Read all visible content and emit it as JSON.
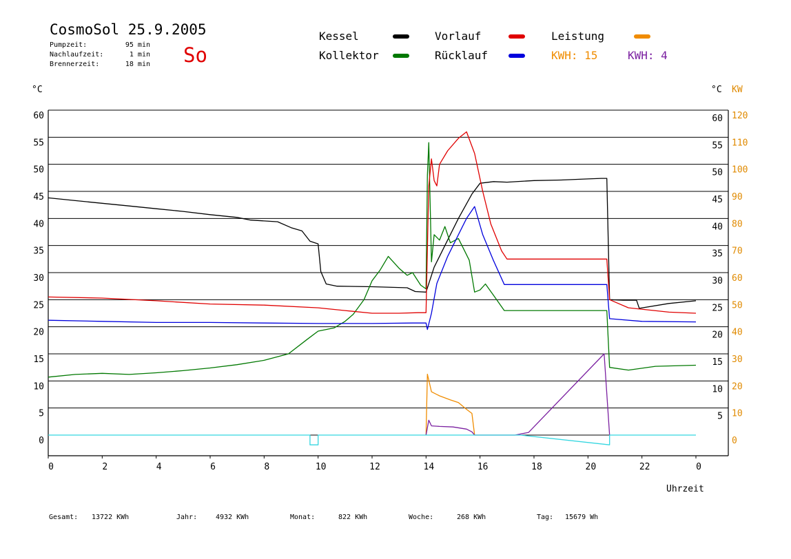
{
  "header": {
    "title": "CosmoSol 25.9.2005",
    "day": "So",
    "info": [
      {
        "label": "Pumpzeit:",
        "value": "95 min"
      },
      {
        "label": "Nachlaufzeit:",
        "value": "1 min"
      },
      {
        "label": "Brennerzeit:",
        "value": "18 min"
      }
    ]
  },
  "legend": {
    "items": [
      {
        "label": "Kessel",
        "color": "#000000"
      },
      {
        "label": "Kollektor",
        "color": "#008000"
      },
      {
        "label": "Vorlauf",
        "color": "#e00000"
      },
      {
        "label": "Rücklauf",
        "color": "#0000e0"
      },
      {
        "label": "Leistung",
        "color": "#f08c00"
      }
    ],
    "kwh_orange": "KWH: 15",
    "kwh_purple": "KWH: 4"
  },
  "axes": {
    "left_unit": "°C",
    "right_unit": "°C",
    "kw_unit": "KW",
    "x_label": "Uhrzeit"
  },
  "footer": {
    "items": [
      {
        "label": "Gesamt:",
        "value": "13722 KWh"
      },
      {
        "label": "Jahr:",
        "value": "4932 KWh"
      },
      {
        "label": "Monat:",
        "value": "822 KWh"
      },
      {
        "label": "Woche:",
        "value": "268 KWh"
      },
      {
        "label": "Tag:",
        "value": "15679 Wh"
      }
    ]
  },
  "colors": {
    "kessel": "#000000",
    "kollektor": "#007800",
    "vorlauf": "#e00000",
    "ruecklauf": "#0000dd",
    "leistung": "#f08c00",
    "kwh4": "#7a1fa0",
    "pump": "#33d6e0",
    "kw_axis": "#e08a00"
  },
  "chart_data": {
    "type": "line",
    "x_ticks": [
      "0",
      "2",
      "4",
      "6",
      "8",
      "10",
      "12",
      "14",
      "16",
      "18",
      "20",
      "22",
      "0"
    ],
    "y_left_ticks": [
      "60",
      "55",
      "50",
      "45",
      "40",
      "35",
      "30",
      "25",
      "20",
      "15",
      "10",
      "5",
      "0"
    ],
    "y_right_ticks": [
      "60",
      "55",
      "50",
      "45",
      "40",
      "35",
      "30",
      "25",
      "20",
      "15",
      "10",
      "5"
    ],
    "y_kw_ticks": [
      "120",
      "110",
      "100",
      "90",
      "80",
      "70",
      "60",
      "50",
      "40",
      "30",
      "20",
      "10",
      "0"
    ],
    "xlim": [
      0,
      24
    ],
    "ylim": [
      0,
      60
    ],
    "kw_lim": [
      0,
      120
    ],
    "series": [
      {
        "name": "Kessel",
        "color": "#000000",
        "points": [
          [
            0,
            43.8
          ],
          [
            1,
            43.3
          ],
          [
            2,
            42.8
          ],
          [
            3,
            42.3
          ],
          [
            4,
            41.8
          ],
          [
            5,
            41.3
          ],
          [
            6,
            40.7
          ],
          [
            7,
            40.2
          ],
          [
            7.5,
            39.7
          ],
          [
            8.5,
            39.4
          ],
          [
            9,
            38.3
          ],
          [
            9.4,
            37.7
          ],
          [
            9.7,
            35.8
          ],
          [
            10,
            35.3
          ],
          [
            10.1,
            30.2
          ],
          [
            10.3,
            27.9
          ],
          [
            10.7,
            27.5
          ],
          [
            12,
            27.4
          ],
          [
            13.3,
            27.2
          ],
          [
            13.6,
            26.5
          ],
          [
            14,
            26.4
          ],
          [
            14.3,
            31
          ],
          [
            14.7,
            35
          ],
          [
            15.2,
            40
          ],
          [
            15.7,
            44.5
          ],
          [
            16,
            46.5
          ],
          [
            16.5,
            46.8
          ],
          [
            17,
            46.7
          ],
          [
            18,
            47
          ],
          [
            19,
            47.1
          ],
          [
            20,
            47.3
          ],
          [
            20.5,
            47.4
          ],
          [
            20.7,
            47.4
          ],
          [
            20.8,
            25
          ],
          [
            21.3,
            24.9
          ],
          [
            21.8,
            24.9
          ],
          [
            21.9,
            23.4
          ],
          [
            23,
            24.3
          ],
          [
            24,
            24.8
          ]
        ]
      },
      {
        "name": "Kollektor",
        "color": "#007800",
        "points": [
          [
            0,
            10.7
          ],
          [
            1,
            11.2
          ],
          [
            2,
            11.4
          ],
          [
            3,
            11.2
          ],
          [
            4,
            11.5
          ],
          [
            5,
            11.9
          ],
          [
            6,
            12.4
          ],
          [
            7,
            13
          ],
          [
            8,
            13.8
          ],
          [
            8.9,
            15
          ],
          [
            9.6,
            17.7
          ],
          [
            10,
            19.2
          ],
          [
            10.6,
            19.8
          ],
          [
            11,
            21
          ],
          [
            11.3,
            22.3
          ],
          [
            11.7,
            25
          ],
          [
            12,
            28.5
          ],
          [
            12.3,
            30.5
          ],
          [
            12.6,
            33
          ],
          [
            13,
            30.8
          ],
          [
            13.3,
            29.5
          ],
          [
            13.5,
            30
          ],
          [
            13.8,
            27.7
          ],
          [
            14,
            27
          ],
          [
            14.05,
            48
          ],
          [
            14.1,
            54
          ],
          [
            14.2,
            32
          ],
          [
            14.3,
            37
          ],
          [
            14.5,
            36
          ],
          [
            14.7,
            38.5
          ],
          [
            14.9,
            35.5
          ],
          [
            15.2,
            36.3
          ],
          [
            15.4,
            34.3
          ],
          [
            15.6,
            32.3
          ],
          [
            15.8,
            26.4
          ],
          [
            16,
            26.8
          ],
          [
            16.2,
            27.9
          ],
          [
            16.5,
            25.8
          ],
          [
            16.9,
            23
          ],
          [
            17.5,
            23
          ],
          [
            19,
            23
          ],
          [
            20.5,
            23
          ],
          [
            20.7,
            23
          ],
          [
            20.8,
            12.5
          ],
          [
            21.5,
            12
          ],
          [
            22.5,
            12.7
          ],
          [
            24,
            12.9
          ]
        ]
      },
      {
        "name": "Vorlauf",
        "color": "#e00000",
        "points": [
          [
            0,
            25.5
          ],
          [
            2,
            25.3
          ],
          [
            4,
            24.8
          ],
          [
            6,
            24.2
          ],
          [
            8,
            24
          ],
          [
            10,
            23.5
          ],
          [
            11,
            23
          ],
          [
            12,
            22.5
          ],
          [
            13,
            22.5
          ],
          [
            13.7,
            22.6
          ],
          [
            14,
            22.6
          ],
          [
            14.1,
            46
          ],
          [
            14.2,
            51
          ],
          [
            14.3,
            47
          ],
          [
            14.4,
            46
          ],
          [
            14.5,
            50
          ],
          [
            14.8,
            52.5
          ],
          [
            15.2,
            54.8
          ],
          [
            15.5,
            56
          ],
          [
            15.8,
            52
          ],
          [
            16.1,
            45
          ],
          [
            16.4,
            39
          ],
          [
            16.8,
            34
          ],
          [
            17,
            32.5
          ],
          [
            19,
            32.5
          ],
          [
            20,
            32.5
          ],
          [
            20.7,
            32.5
          ],
          [
            20.8,
            25
          ],
          [
            21.5,
            23.5
          ],
          [
            23,
            22.7
          ],
          [
            24,
            22.5
          ]
        ]
      },
      {
        "name": "Rücklauf",
        "color": "#0000dd",
        "points": [
          [
            0,
            21.2
          ],
          [
            2,
            21
          ],
          [
            4,
            20.8
          ],
          [
            6,
            20.8
          ],
          [
            8,
            20.7
          ],
          [
            10,
            20.6
          ],
          [
            12,
            20.6
          ],
          [
            13.5,
            20.7
          ],
          [
            14,
            20.7
          ],
          [
            14.05,
            19.5
          ],
          [
            14.2,
            22.5
          ],
          [
            14.4,
            28
          ],
          [
            14.8,
            33
          ],
          [
            15.2,
            37
          ],
          [
            15.5,
            40
          ],
          [
            15.8,
            42.2
          ],
          [
            16.1,
            37
          ],
          [
            16.5,
            32.2
          ],
          [
            16.9,
            27.8
          ],
          [
            18,
            27.8
          ],
          [
            20,
            27.8
          ],
          [
            20.7,
            27.8
          ],
          [
            20.8,
            21.5
          ],
          [
            22,
            21
          ],
          [
            24,
            20.9
          ]
        ]
      },
      {
        "name": "Leistung",
        "color": "#f08c00",
        "unit": "KW",
        "points": [
          [
            14,
            0
          ],
          [
            14.05,
            22.5
          ],
          [
            14.2,
            16
          ],
          [
            14.5,
            14.5
          ],
          [
            14.9,
            13
          ],
          [
            15.2,
            12
          ],
          [
            15.5,
            9.5
          ],
          [
            15.7,
            8
          ],
          [
            15.8,
            0
          ]
        ]
      },
      {
        "name": "KWH: 4",
        "color": "#7a1fa0",
        "unit": "KW",
        "points": [
          [
            14,
            0
          ],
          [
            14.1,
            5.5
          ],
          [
            14.2,
            3.4
          ],
          [
            14.5,
            3.2
          ],
          [
            15,
            3
          ],
          [
            15.5,
            2.2
          ],
          [
            15.7,
            1.2
          ],
          [
            15.8,
            0
          ],
          [
            17.3,
            0
          ],
          [
            17.8,
            1
          ],
          [
            20.6,
            30
          ],
          [
            20.8,
            0
          ]
        ]
      },
      {
        "name": "Pumpe",
        "color": "#33d6e0",
        "points": [
          [
            0,
            0
          ],
          [
            9.7,
            0
          ],
          [
            9.7,
            -1.8
          ],
          [
            10,
            -1.8
          ],
          [
            10,
            0
          ],
          [
            17.5,
            0
          ],
          [
            20.8,
            -1.8
          ],
          [
            20.8,
            0
          ],
          [
            24,
            0
          ]
        ]
      }
    ]
  }
}
